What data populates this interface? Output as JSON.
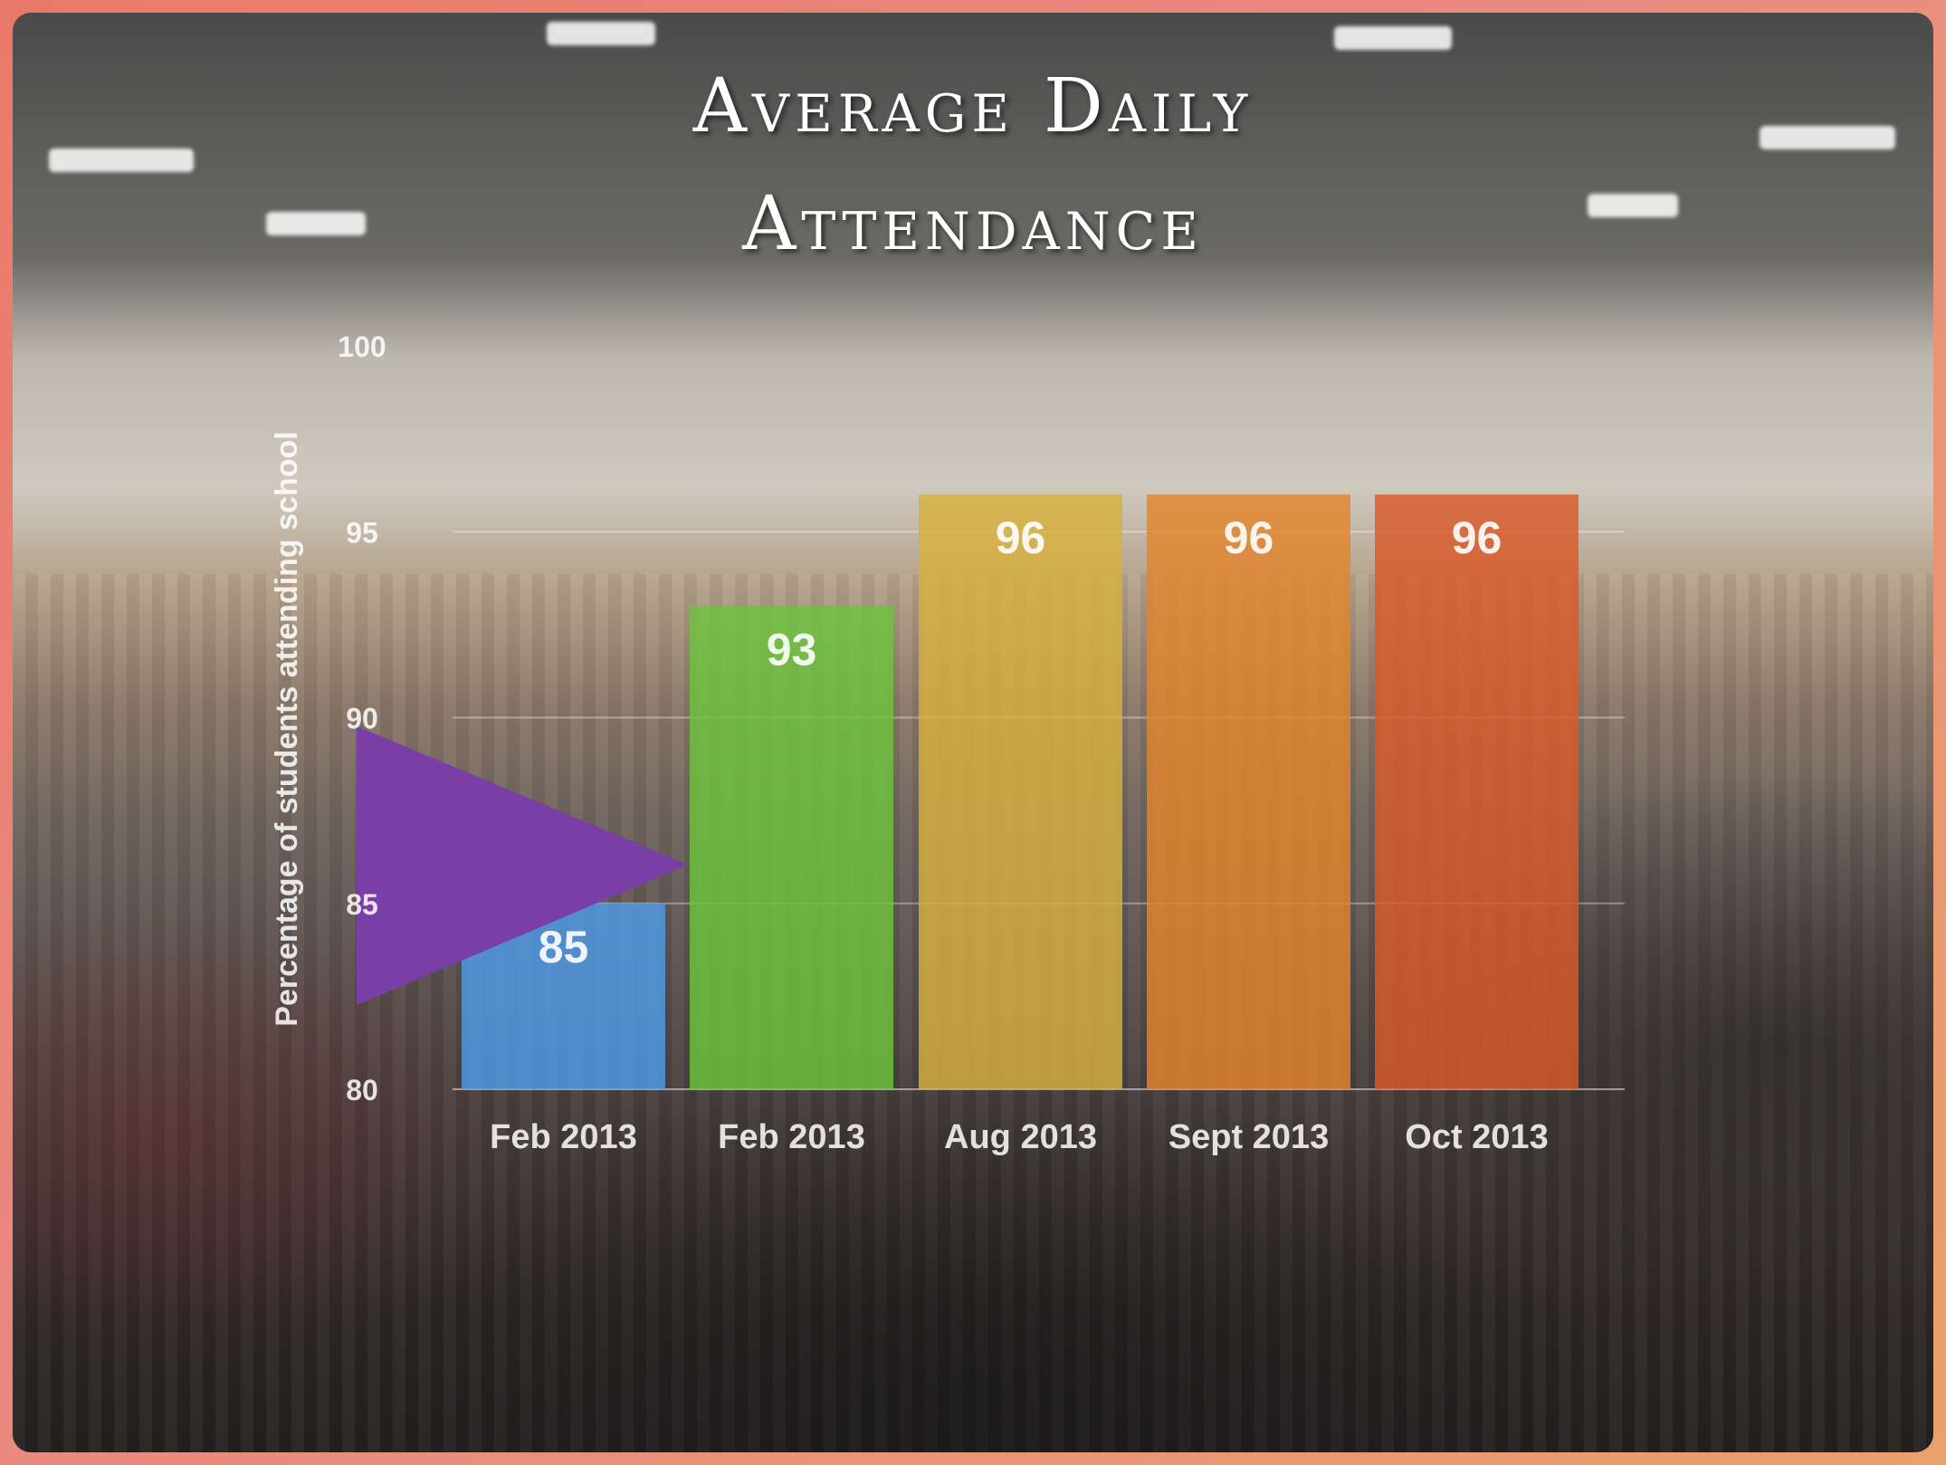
{
  "chart_data": {
    "type": "bar",
    "title_line1": "Average Daily",
    "title_line2": "Attendance",
    "ylabel": "Percentage of students attending school",
    "xlabel": "",
    "ylim": [
      80,
      100
    ],
    "yticks": [
      "80",
      "85",
      "90",
      "95",
      "100"
    ],
    "categories": [
      "Feb 2013",
      "Feb 2013",
      "Aug 2013",
      "Sept 2013",
      "Oct 2013"
    ],
    "values": [
      85,
      93,
      96,
      96,
      96
    ],
    "data_labels": [
      "85",
      "93",
      "96",
      "96",
      "96"
    ],
    "bar_colors": [
      "#4f9be8",
      "#6cc43c",
      "#d7b13e",
      "#e2852d",
      "#d95a2a"
    ],
    "grid": true,
    "legend": "none"
  },
  "colors": {
    "arrow": "#7a3fa6",
    "label_text": "#ffffff"
  },
  "icons": {
    "arrow": "purple-triangle-arrow-icon"
  }
}
